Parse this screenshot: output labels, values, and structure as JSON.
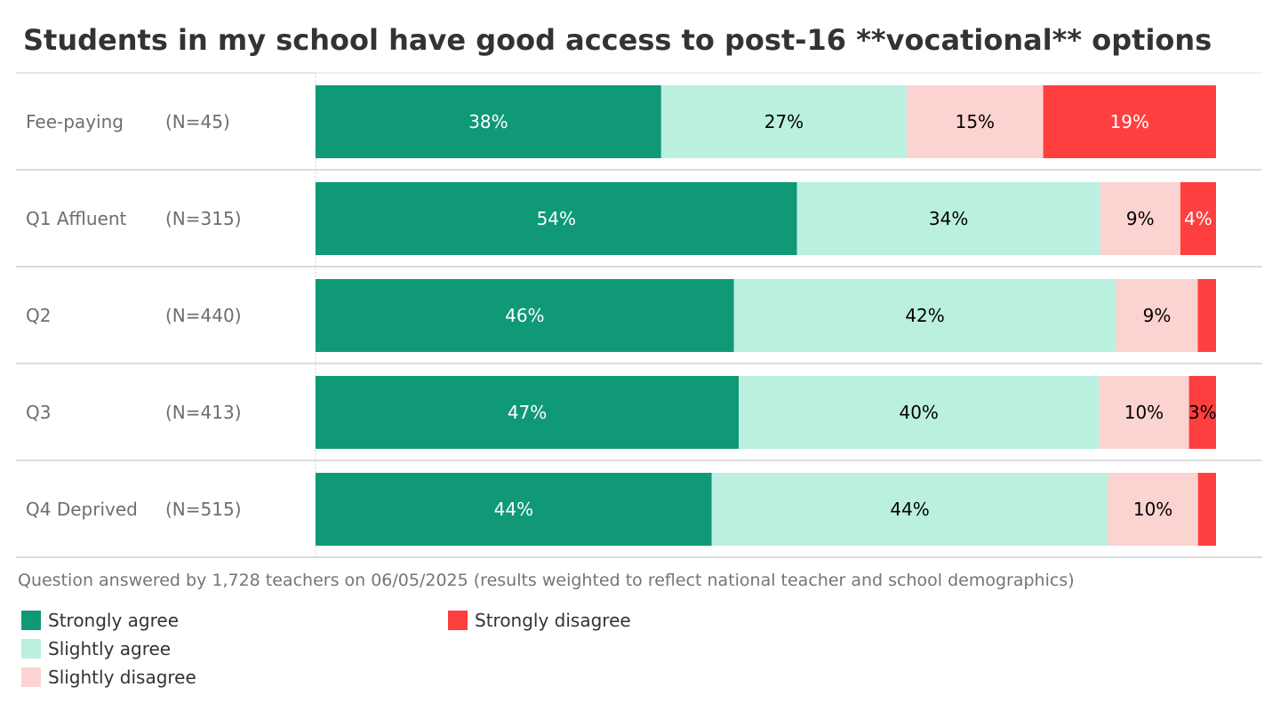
{
  "chart_data": {
    "type": "bar",
    "orientation": "horizontal",
    "stacked": true,
    "title": "Students in my school have good access to post-16 **vocational** options",
    "categories": [
      "Fee-paying",
      "Q1 Affluent",
      "Q2",
      "Q3",
      "Q4 Deprived"
    ],
    "sample_sizes": [
      "(N=45)",
      "(N=315)",
      "(N=440)",
      "(N=413)",
      "(N=515)"
    ],
    "series": [
      {
        "name": "Strongly agree",
        "color": "#0f9976",
        "label_color": "#ffffff",
        "values": [
          38,
          54,
          46,
          47,
          44
        ],
        "labels": [
          "38%",
          "54%",
          "46%",
          "47%",
          "44%"
        ]
      },
      {
        "name": "Slightly agree",
        "color": "#bbefdf",
        "label_color": "#000000",
        "values": [
          27,
          34,
          42,
          40,
          44
        ],
        "labels": [
          "27%",
          "34%",
          "42%",
          "40%",
          "44%"
        ]
      },
      {
        "name": "Slightly disagree",
        "color": "#fbd3d1",
        "label_color": "#000000",
        "values": [
          15,
          9,
          9,
          10,
          10
        ],
        "labels": [
          "15%",
          "9%",
          "9%",
          "10%",
          "10%"
        ]
      },
      {
        "name": "Strongly disagree",
        "color": "#fe3f3f",
        "label_color": "#ffffff",
        "values": [
          19,
          4,
          2,
          3,
          2
        ],
        "labels": [
          "19%",
          "4%",
          "",
          "3%",
          ""
        ],
        "label_colors": [
          "#ffffff",
          "#ffffff",
          "#ffffff",
          "#000000",
          "#ffffff"
        ]
      }
    ],
    "legend_position": "bottom-left",
    "footnote": "Question answered by 1,728 teachers on 06/05/2025 (results weighted to reflect national teacher and school demographics)"
  }
}
